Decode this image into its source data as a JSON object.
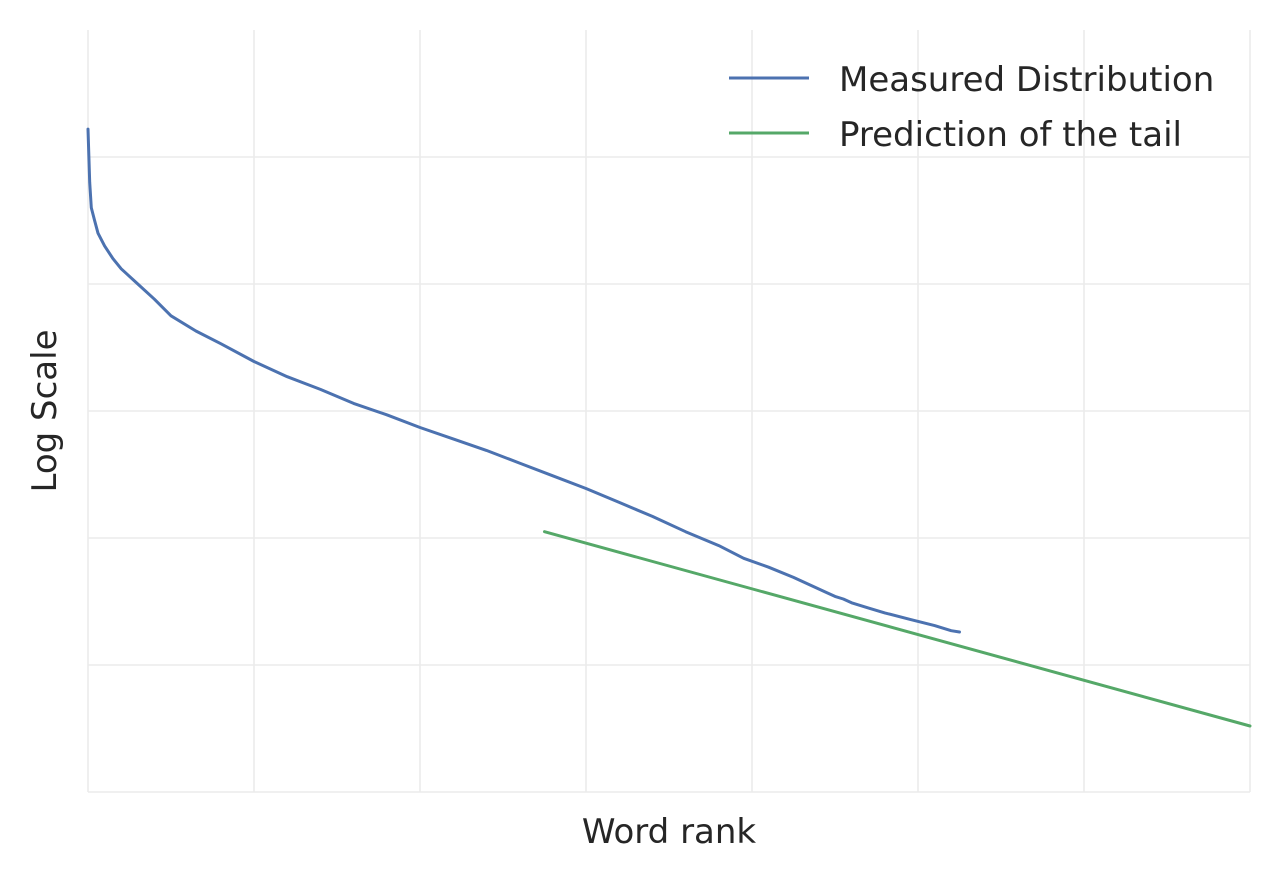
{
  "chart_data": {
    "type": "line",
    "title": "",
    "xlabel": "Word rank",
    "ylabel": "Log Scale",
    "xlim": [
      0,
      7
    ],
    "ylim": [
      0,
      6
    ],
    "x_ticks": [
      0,
      1,
      2,
      3,
      4,
      5,
      6,
      7
    ],
    "y_ticks": [
      0,
      1,
      2,
      3,
      4,
      5
    ],
    "tick_labels_visible": false,
    "grid": true,
    "legend_position": "top-right",
    "series": [
      {
        "name": "Measured Distribution",
        "color": "#4c72b0",
        "points": [
          [
            0.0,
            5.22
          ],
          [
            0.01,
            4.8
          ],
          [
            0.02,
            4.6
          ],
          [
            0.04,
            4.5
          ],
          [
            0.06,
            4.4
          ],
          [
            0.1,
            4.3
          ],
          [
            0.15,
            4.2
          ],
          [
            0.2,
            4.12
          ],
          [
            0.3,
            4.0
          ],
          [
            0.4,
            3.88
          ],
          [
            0.5,
            3.75
          ],
          [
            0.65,
            3.63
          ],
          [
            0.8,
            3.53
          ],
          [
            1.0,
            3.39
          ],
          [
            1.2,
            3.27
          ],
          [
            1.4,
            3.17
          ],
          [
            1.6,
            3.06
          ],
          [
            1.8,
            2.97
          ],
          [
            2.0,
            2.87
          ],
          [
            2.2,
            2.78
          ],
          [
            2.4,
            2.69
          ],
          [
            2.6,
            2.59
          ],
          [
            2.8,
            2.49
          ],
          [
            3.0,
            2.39
          ],
          [
            3.2,
            2.28
          ],
          [
            3.4,
            2.17
          ],
          [
            3.6,
            2.05
          ],
          [
            3.8,
            1.94
          ],
          [
            3.95,
            1.84
          ],
          [
            4.1,
            1.77
          ],
          [
            4.25,
            1.69
          ],
          [
            4.35,
            1.63
          ],
          [
            4.45,
            1.57
          ],
          [
            4.5,
            1.54
          ],
          [
            4.55,
            1.52
          ],
          [
            4.6,
            1.49
          ],
          [
            4.7,
            1.45
          ],
          [
            4.8,
            1.41
          ],
          [
            4.95,
            1.36
          ],
          [
            5.1,
            1.31
          ],
          [
            5.2,
            1.27
          ],
          [
            5.25,
            1.26
          ]
        ]
      },
      {
        "name": "Prediction of the tail",
        "color": "#55a868",
        "points": [
          [
            2.75,
            2.05
          ],
          [
            7.0,
            0.52
          ]
        ]
      }
    ]
  }
}
